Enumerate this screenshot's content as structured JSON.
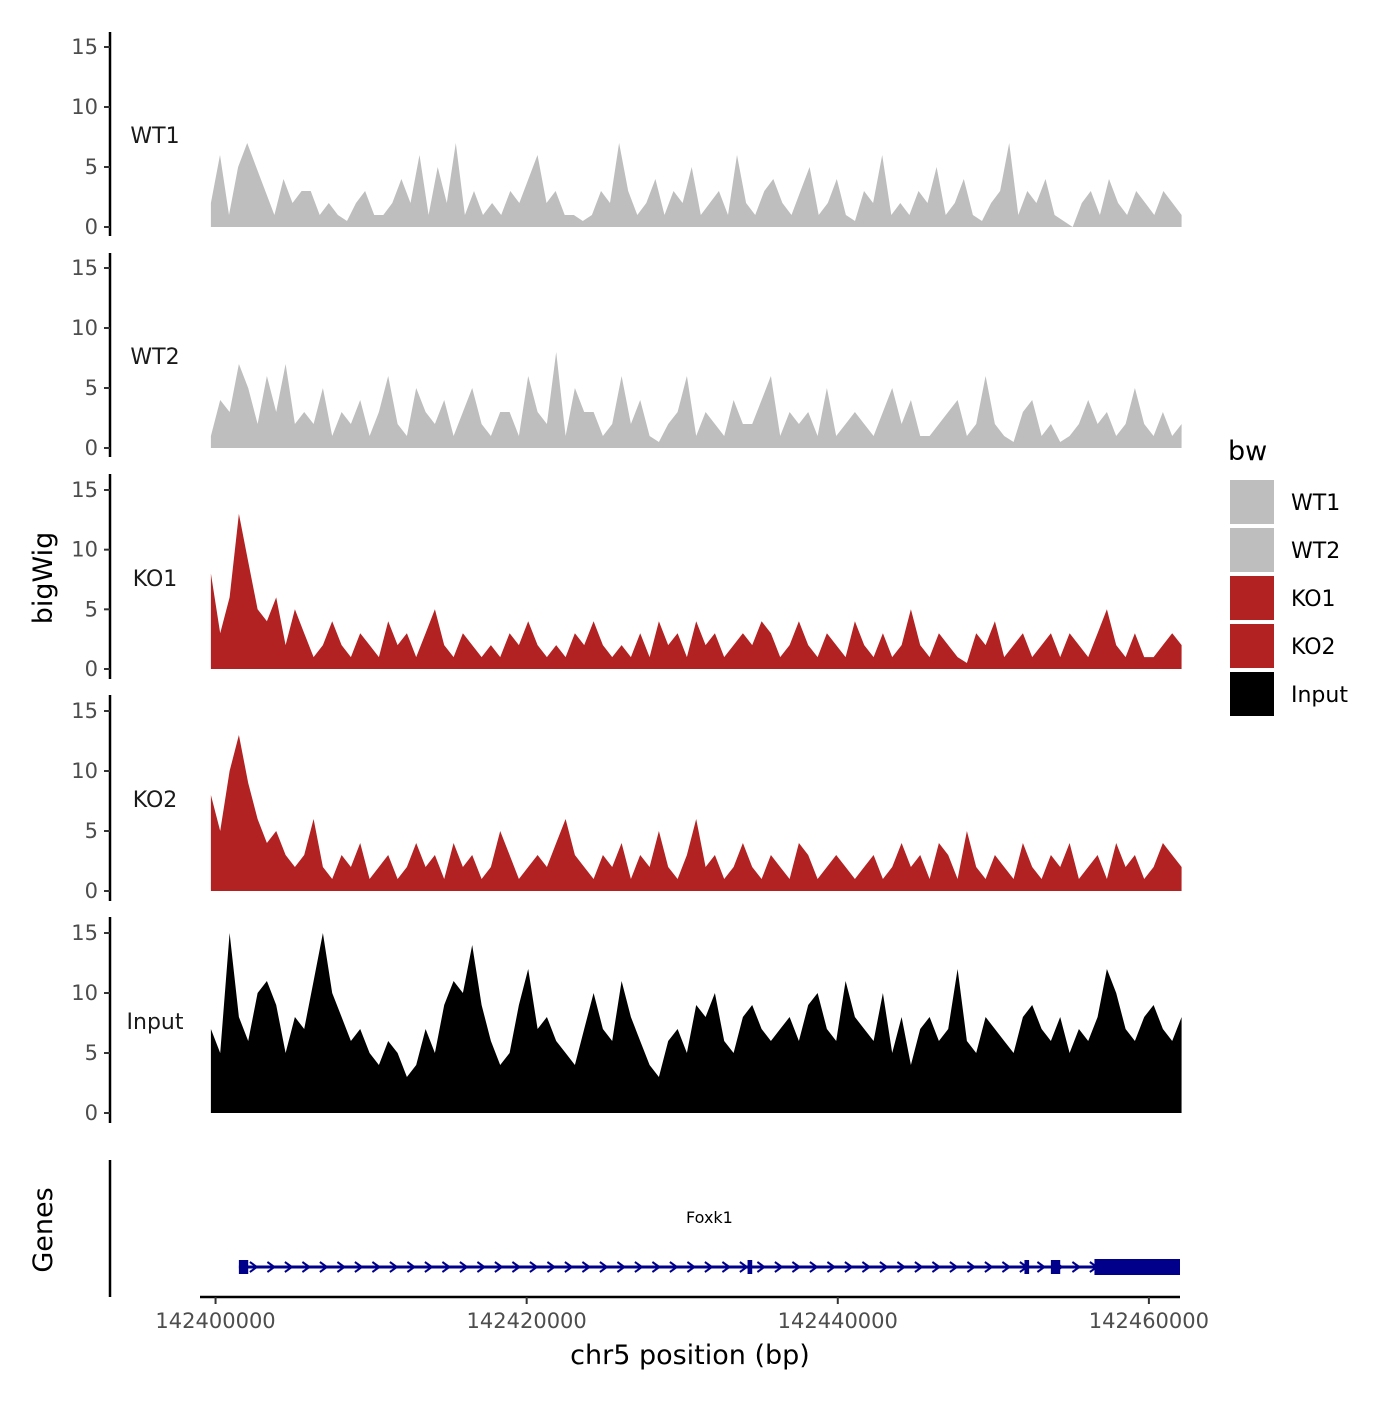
{
  "chart_data": {
    "type": "area",
    "title": "",
    "chromosome": "chr5",
    "xlabel": "chr5 position (bp)",
    "ylabel": "bigWig",
    "genes_ylabel": "Genes",
    "xlim": [
      142399000,
      142462000
    ],
    "data_xrange": [
      142399700,
      142462100
    ],
    "xticks": [
      142400000,
      142420000,
      142440000,
      142460000
    ],
    "xtick_labels": [
      "142400000",
      "142420000",
      "142440000",
      "142460000"
    ],
    "ylim": [
      0,
      15
    ],
    "yticks": [
      0,
      5,
      10,
      15
    ],
    "ytick_labels": [
      "0",
      "5",
      "10",
      "15"
    ],
    "legend": {
      "title": "bw",
      "position": "right",
      "entries": [
        {
          "label": "WT1",
          "color": "#bebebe"
        },
        {
          "label": "WT2",
          "color": "#bebebe"
        },
        {
          "label": "KO1",
          "color": "#b22222"
        },
        {
          "label": "KO2",
          "color": "#b22222"
        },
        {
          "label": "Input",
          "color": "#000000"
        }
      ]
    },
    "series": [
      {
        "name": "WT1",
        "color": "#bebebe",
        "values": [
          2,
          6,
          1,
          5,
          7,
          5,
          3,
          1,
          4,
          2,
          3,
          3,
          1,
          2,
          1,
          0.5,
          2,
          3,
          1,
          1,
          2,
          4,
          2,
          6,
          1,
          5,
          2,
          7,
          1,
          3,
          1,
          2,
          1,
          3,
          2,
          4,
          6,
          2,
          3,
          1,
          1,
          0.5,
          1,
          3,
          2,
          7,
          3,
          1,
          2,
          4,
          1,
          3,
          2,
          5,
          1,
          2,
          3,
          1,
          6,
          2,
          1,
          3,
          4,
          2,
          1,
          3,
          5,
          1,
          2,
          4,
          1,
          0.5,
          3,
          2,
          6,
          1,
          2,
          1,
          3,
          2,
          5,
          1,
          2,
          4,
          1,
          0.5,
          2,
          3,
          7,
          1,
          3,
          2,
          4,
          1,
          0.5,
          0,
          2,
          3,
          1,
          4,
          2,
          1,
          3,
          2,
          1,
          3,
          2,
          1
        ]
      },
      {
        "name": "WT2",
        "color": "#bebebe",
        "values": [
          1,
          4,
          3,
          7,
          5,
          2,
          6,
          3,
          7,
          2,
          3,
          2,
          5,
          1,
          3,
          2,
          4,
          1,
          3,
          6,
          2,
          1,
          5,
          3,
          2,
          4,
          1,
          3,
          5,
          2,
          1,
          3,
          3,
          1,
          6,
          3,
          2,
          8,
          1,
          5,
          3,
          3,
          1,
          2,
          6,
          2,
          4,
          1,
          0.5,
          2,
          3,
          6,
          1,
          3,
          2,
          1,
          4,
          2,
          2,
          4,
          6,
          1,
          3,
          2,
          3,
          1,
          5,
          1,
          2,
          3,
          2,
          1,
          3,
          5,
          2,
          4,
          1,
          1,
          2,
          3,
          4,
          1,
          2,
          6,
          2,
          1,
          0.5,
          3,
          4,
          1,
          2,
          0.5,
          1,
          2,
          4,
          2,
          3,
          1,
          2,
          5,
          2,
          1,
          3,
          1,
          2
        ]
      },
      {
        "name": "KO1",
        "color": "#b22222",
        "values": [
          8,
          3,
          6,
          13,
          9,
          5,
          4,
          6,
          2,
          5,
          3,
          1,
          2,
          4,
          2,
          1,
          3,
          2,
          1,
          4,
          2,
          3,
          1,
          3,
          5,
          2,
          1,
          3,
          2,
          1,
          2,
          1,
          3,
          2,
          4,
          2,
          1,
          2,
          1,
          3,
          2,
          4,
          2,
          1,
          2,
          1,
          3,
          1,
          4,
          2,
          3,
          1,
          4,
          2,
          3,
          1,
          2,
          3,
          2,
          4,
          3,
          1,
          2,
          4,
          2,
          1,
          3,
          2,
          1,
          4,
          2,
          1,
          3,
          1,
          2,
          5,
          2,
          1,
          3,
          2,
          1,
          0.5,
          3,
          2,
          4,
          1,
          2,
          3,
          1,
          2,
          3,
          1,
          3,
          2,
          1,
          3,
          5,
          2,
          1,
          3,
          1,
          1,
          2,
          3,
          2
        ]
      },
      {
        "name": "KO2",
        "color": "#b22222",
        "values": [
          8,
          5,
          10,
          13,
          9,
          6,
          4,
          5,
          3,
          2,
          3,
          6,
          2,
          1,
          3,
          2,
          4,
          1,
          2,
          3,
          1,
          2,
          4,
          2,
          3,
          1,
          4,
          2,
          3,
          1,
          2,
          5,
          3,
          1,
          2,
          3,
          2,
          4,
          6,
          3,
          2,
          1,
          3,
          2,
          4,
          1,
          3,
          2,
          5,
          2,
          1,
          3,
          6,
          2,
          3,
          1,
          2,
          4,
          2,
          1,
          3,
          2,
          1,
          4,
          3,
          1,
          2,
          3,
          2,
          1,
          2,
          3,
          1,
          2,
          4,
          2,
          3,
          1,
          4,
          3,
          1,
          5,
          2,
          1,
          3,
          2,
          1,
          4,
          2,
          1,
          3,
          2,
          4,
          1,
          2,
          3,
          1,
          4,
          2,
          3,
          1,
          2,
          4,
          3,
          2
        ]
      },
      {
        "name": "Input",
        "color": "#000000",
        "values": [
          7,
          5,
          15,
          8,
          6,
          10,
          11,
          9,
          5,
          8,
          7,
          11,
          15,
          10,
          8,
          6,
          7,
          5,
          4,
          6,
          5,
          3,
          4,
          7,
          5,
          9,
          11,
          10,
          14,
          9,
          6,
          4,
          5,
          9,
          12,
          7,
          8,
          6,
          5,
          4,
          7,
          10,
          7,
          6,
          11,
          8,
          6,
          4,
          3,
          6,
          7,
          5,
          9,
          8,
          10,
          6,
          5,
          8,
          9,
          7,
          6,
          7,
          8,
          6,
          9,
          10,
          7,
          6,
          11,
          8,
          7,
          6,
          10,
          5,
          8,
          4,
          7,
          8,
          6,
          7,
          12,
          6,
          5,
          8,
          7,
          6,
          5,
          8,
          9,
          7,
          6,
          8,
          5,
          7,
          6,
          8,
          12,
          10,
          7,
          6,
          8,
          9,
          7,
          6,
          8
        ]
      }
    ],
    "genes": [
      {
        "name": "Foxk1",
        "strand": "+",
        "color": "#00008b",
        "start": 142401500,
        "end": 142462000,
        "exons": [
          [
            142401500,
            142402100
          ],
          [
            142434200,
            142434500
          ],
          [
            142452000,
            142452300
          ],
          [
            142453700,
            142454300
          ],
          [
            142456500,
            142462000
          ]
        ]
      }
    ]
  }
}
